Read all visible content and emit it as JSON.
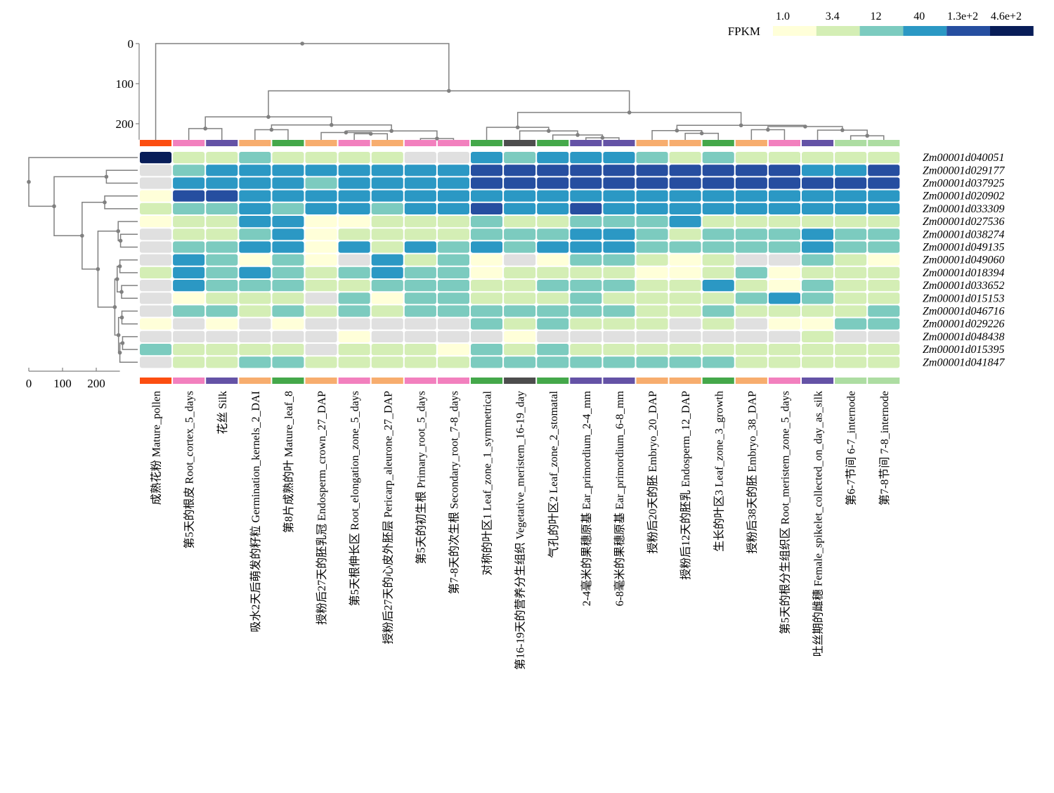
{
  "chart_data": {
    "type": "heatmap",
    "legend": {
      "title": "FPKM",
      "bins": [
        {
          "label": "1.0",
          "color": "#ffffd9"
        },
        {
          "label": "3.4",
          "color": "#d4eeb5"
        },
        {
          "label": "12",
          "color": "#7ccbbf"
        },
        {
          "label": "40",
          "color": "#2b98c4"
        },
        {
          "label": "1.3e+2",
          "color": "#264ea0"
        },
        {
          "label": "4.6e+2",
          "color": "#081d58"
        }
      ]
    },
    "missing_color": "#e0e0e0",
    "column_dendrogram_ticks": [
      "0",
      "100",
      "200"
    ],
    "row_dendrogram_ticks": [
      "0",
      "100",
      "200"
    ],
    "samples": [
      {
        "label": "成熟花粉 Mature_pollen",
        "group_color": "#fc4e11"
      },
      {
        "label": "第5天的根皮 Root_cortex_5_days",
        "group_color": "#f280be"
      },
      {
        "label": "花丝 Silk",
        "group_color": "#6452a6"
      },
      {
        "label": "吸水2天后萌发的籽粒 Germination_kernels_2_DAI",
        "group_color": "#f7ad6e"
      },
      {
        "label": "第8片成熟的叶 Mature_leaf_8",
        "group_color": "#44a84a"
      },
      {
        "label": "授粉后27天的胚乳冠 Endosperm_crown_27_DAP",
        "group_color": "#f7ad6e"
      },
      {
        "label": "第5天根伸长区 Root_elongation_zone_5_days",
        "group_color": "#f280be"
      },
      {
        "label": "授粉后27天的心皮外胚层 Pericarp_aleurone_27_DAP",
        "group_color": "#f7ad6e"
      },
      {
        "label": "第5天的初生根 Primary_root_5_days",
        "group_color": "#f280be"
      },
      {
        "label": "第7-8天的次生根 Secondary_root_7-8_days",
        "group_color": "#f280be"
      },
      {
        "label": "对称的叶区1 Leaf_zone_1_symmetrical",
        "group_color": "#44a84a"
      },
      {
        "label": "第16-19天的营养分生组织 Vegetative_meristem_16-19_day",
        "group_color": "#4d4d4d"
      },
      {
        "label": "气孔的叶区2 Leaf_zone_2_stomatal",
        "group_color": "#44a84a"
      },
      {
        "label": "2-4毫米的果穗原基 Ear_primordium_2-4_mm",
        "group_color": "#6452a6"
      },
      {
        "label": "6-8毫米的果穗原基 Ear_primordium_6-8_mm",
        "group_color": "#6452a6"
      },
      {
        "label": "授粉后20天的胚 Embryo_20_DAP",
        "group_color": "#f7ad6e"
      },
      {
        "label": "授粉后12天的胚乳 Endosperm_12_DAP",
        "group_color": "#f7ad6e"
      },
      {
        "label": "生长的叶区3 Leaf_zone_3_growth",
        "group_color": "#44a84a"
      },
      {
        "label": "授粉后38天的胚 Embryo_38_DAP",
        "group_color": "#f7ad6e"
      },
      {
        "label": "第5天的根分生组织区 Root_meristem_zone_5_days",
        "group_color": "#f280be"
      },
      {
        "label": "吐丝期的雌穗 Female_spikelet_collected_on_day_as_silk",
        "group_color": "#6452a6"
      },
      {
        "label": "第6-7节间 6-7_internode",
        "group_color": "#addda2"
      },
      {
        "label": "第7-8节间 7-8_internode",
        "group_color": "#addda2"
      }
    ],
    "genes": [
      "Zm00001d040051",
      "Zm00001d029177",
      "Zm00001d037925",
      "Zm00001d020902",
      "Zm00001d033309",
      "Zm00001d027536",
      "Zm00001d038274",
      "Zm00001d049135",
      "Zm00001d049060",
      "Zm00001d018394",
      "Zm00001d033652",
      "Zm00001d015153",
      "Zm00001d046716",
      "Zm00001d029226",
      "Zm00001d048438",
      "Zm00001d015395",
      "Zm00001d041847"
    ],
    "values": [
      [
        460,
        3.4,
        2,
        8,
        4,
        2.5,
        2.5,
        3,
        null,
        null,
        40,
        15,
        40,
        40,
        35,
        12,
        3,
        15,
        4,
        3.4,
        6,
        4,
        4
      ],
      [
        null,
        12,
        40,
        60,
        40,
        40,
        35,
        40,
        40,
        40,
        180,
        150,
        150,
        180,
        150,
        120,
        130,
        120,
        120,
        110,
        70,
        70,
        90
      ],
      [
        null,
        25,
        40,
        50,
        35,
        12,
        30,
        40,
        30,
        30,
        200,
        170,
        170,
        150,
        150,
        140,
        150,
        140,
        120,
        130,
        80,
        80,
        120
      ],
      [
        1.5,
        150,
        110,
        60,
        60,
        30,
        35,
        30,
        40,
        60,
        40,
        25,
        45,
        40,
        35,
        40,
        50,
        40,
        25,
        35,
        30,
        60,
        40
      ],
      [
        3.4,
        12,
        8,
        40,
        20,
        25,
        30,
        20,
        40,
        35,
        80,
        60,
        60,
        80,
        70,
        50,
        45,
        50,
        35,
        60,
        30,
        50,
        70
      ],
      [
        1.5,
        3.4,
        3.4,
        40,
        25,
        1.5,
        1.5,
        5,
        3.4,
        4,
        8,
        6,
        5,
        12,
        8,
        8,
        25,
        3.4,
        6,
        3.4,
        6,
        2,
        3.4
      ],
      [
        null,
        4,
        4,
        20,
        40,
        1.5,
        2.2,
        3.4,
        4,
        4,
        20,
        10,
        20,
        30,
        30,
        12,
        3.4,
        20,
        12,
        8,
        25,
        12,
        8
      ],
      [
        null,
        12,
        10,
        30,
        25,
        1.5,
        25,
        3.4,
        25,
        20,
        25,
        20,
        25,
        30,
        25,
        20,
        12,
        20,
        15,
        12,
        25,
        15,
        12
      ],
      [
        null,
        40,
        10,
        1.5,
        8,
        1.5,
        null,
        40,
        5,
        8,
        1.5,
        null,
        1.5,
        12,
        8,
        4,
        1.5,
        2,
        null,
        null,
        8,
        2,
        1.5
      ],
      [
        3.4,
        30,
        12,
        30,
        8,
        5,
        8,
        25,
        12,
        20,
        1.5,
        3.4,
        4,
        2,
        3.4,
        1.5,
        1.5,
        3.4,
        8,
        1.5,
        6,
        3.4,
        2.5
      ],
      [
        null,
        25,
        20,
        12,
        15,
        4,
        5,
        20,
        15,
        15,
        4,
        6,
        8,
        8,
        8,
        3.4,
        3.4,
        25,
        5,
        1.5,
        8,
        3.4,
        4
      ],
      [
        null,
        1.5,
        3.4,
        4,
        5,
        null,
        12,
        1.5,
        20,
        20,
        4,
        4,
        3.4,
        8,
        6,
        6,
        2,
        3.4,
        8,
        30,
        15,
        4,
        5
      ],
      [
        null,
        20,
        8,
        3.4,
        12,
        6,
        12,
        5,
        8,
        10,
        20,
        20,
        15,
        8,
        8,
        6,
        3,
        12,
        5,
        2,
        4,
        4,
        8
      ],
      [
        1.5,
        null,
        1.5,
        null,
        1.5,
        null,
        null,
        null,
        null,
        null,
        8,
        6,
        8,
        3.4,
        4,
        3.4,
        null,
        3.4,
        null,
        1.5,
        1.5,
        20,
        12
      ],
      [
        null,
        null,
        null,
        null,
        null,
        null,
        1.5,
        null,
        null,
        null,
        null,
        1.5,
        null,
        null,
        null,
        null,
        null,
        null,
        null,
        null,
        3.4,
        null,
        null
      ],
      [
        12,
        3,
        3,
        3.4,
        4,
        null,
        2.5,
        2.5,
        2.5,
        1.5,
        8,
        5,
        8,
        6,
        6,
        5,
        3,
        5,
        4,
        3.4,
        4,
        3.4,
        3.4
      ],
      [
        null,
        4,
        3,
        8,
        8,
        3.4,
        4,
        4,
        3.4,
        3.4,
        8,
        15,
        8,
        12,
        12,
        8,
        12,
        8,
        5,
        5,
        6,
        4,
        6
      ]
    ]
  }
}
